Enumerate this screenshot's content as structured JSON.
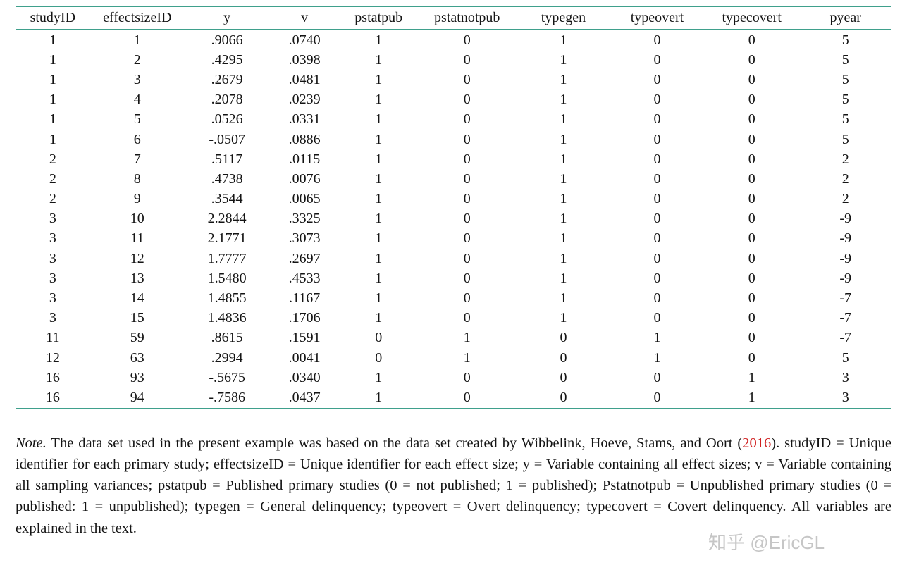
{
  "colors": {
    "rule": "#3fa08c",
    "cite": "#d02020",
    "watermark_gray": "#808080"
  },
  "table": {
    "columns": [
      "studyID",
      "effectsizeID",
      "y",
      "v",
      "pstatpub",
      "pstatnotpub",
      "typegen",
      "typeovert",
      "typecovert",
      "pyear"
    ],
    "rows": [
      [
        "1",
        "1",
        ".9066",
        ".0740",
        "1",
        "0",
        "1",
        "0",
        "0",
        "5"
      ],
      [
        "1",
        "2",
        ".4295",
        ".0398",
        "1",
        "0",
        "1",
        "0",
        "0",
        "5"
      ],
      [
        "1",
        "3",
        ".2679",
        ".0481",
        "1",
        "0",
        "1",
        "0",
        "0",
        "5"
      ],
      [
        "1",
        "4",
        ".2078",
        ".0239",
        "1",
        "0",
        "1",
        "0",
        "0",
        "5"
      ],
      [
        "1",
        "5",
        ".0526",
        ".0331",
        "1",
        "0",
        "1",
        "0",
        "0",
        "5"
      ],
      [
        "1",
        "6",
        "-.0507",
        ".0886",
        "1",
        "0",
        "1",
        "0",
        "0",
        "5"
      ],
      [
        "2",
        "7",
        ".5117",
        ".0115",
        "1",
        "0",
        "1",
        "0",
        "0",
        "2"
      ],
      [
        "2",
        "8",
        ".4738",
        ".0076",
        "1",
        "0",
        "1",
        "0",
        "0",
        "2"
      ],
      [
        "2",
        "9",
        ".3544",
        ".0065",
        "1",
        "0",
        "1",
        "0",
        "0",
        "2"
      ],
      [
        "3",
        "10",
        "2.2844",
        ".3325",
        "1",
        "0",
        "1",
        "0",
        "0",
        "-9"
      ],
      [
        "3",
        "11",
        "2.1771",
        ".3073",
        "1",
        "0",
        "1",
        "0",
        "0",
        "-9"
      ],
      [
        "3",
        "12",
        "1.7777",
        ".2697",
        "1",
        "0",
        "1",
        "0",
        "0",
        "-9"
      ],
      [
        "3",
        "13",
        "1.5480",
        ".4533",
        "1",
        "0",
        "1",
        "0",
        "0",
        "-9"
      ],
      [
        "3",
        "14",
        "1.4855",
        ".1167",
        "1",
        "0",
        "1",
        "0",
        "0",
        "-7"
      ],
      [
        "3",
        "15",
        "1.4836",
        ".1706",
        "1",
        "0",
        "1",
        "0",
        "0",
        "-7"
      ],
      [
        "11",
        "59",
        ".8615",
        ".1591",
        "0",
        "1",
        "0",
        "1",
        "0",
        "-7"
      ],
      [
        "12",
        "63",
        ".2994",
        ".0041",
        "0",
        "1",
        "0",
        "1",
        "0",
        "5"
      ],
      [
        "16",
        "93",
        "-.5675",
        ".0340",
        "1",
        "0",
        "0",
        "0",
        "1",
        "3"
      ],
      [
        "16",
        "94",
        "-.7586",
        ".0437",
        "1",
        "0",
        "0",
        "0",
        "1",
        "3"
      ]
    ]
  },
  "note": {
    "label": "Note.",
    "part1": " The data set used in the present example was based on the data set created by Wibbelink, Hoeve, Stams, and Oort (",
    "cite": "2016",
    "part2": "). studyID = Unique identifier for each primary study; effectsizeID = Unique identifier for each effect size; y = Variable containing all effect sizes; v = Variable containing all sampling variances; pstatpub = Published primary studies (0 = not published; 1 = published); Pstatnotpub = Unpublished primary studies (0 = published: 1 = unpublished); typegen = General delinquency; typeovert = Overt delinquency; typecovert = Covert delinquency. All variables are explained in the text."
  },
  "watermark": "知乎 @EricGL"
}
